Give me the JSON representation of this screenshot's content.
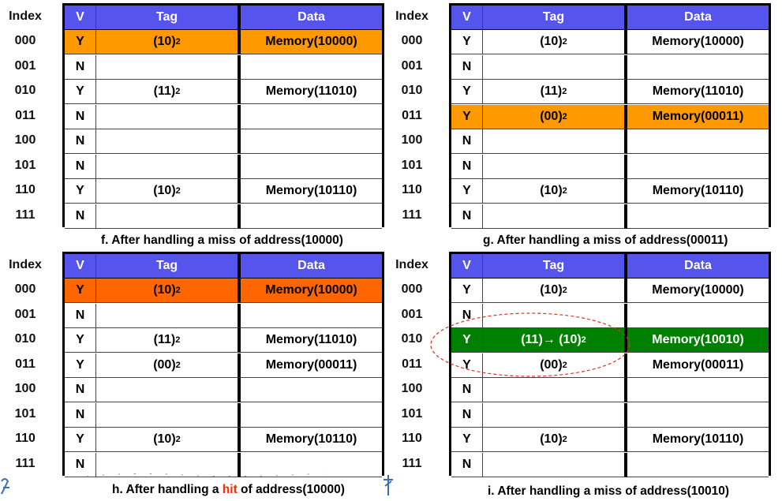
{
  "headers": {
    "index": "Index",
    "v": "V",
    "tag": "Tag",
    "data": "Data"
  },
  "indices": [
    "000",
    "001",
    "010",
    "011",
    "100",
    "101",
    "110",
    "111"
  ],
  "highlight_colors": {
    "orange": "#ff9900",
    "red_orange": "#ff6600",
    "green": "#008000",
    "header_blue": "#5555ee",
    "hit_text": "#ff2a00"
  },
  "panels": [
    {
      "id": "f",
      "caption": "f. After handling a miss of address(10000)",
      "rows": [
        {
          "v": "Y",
          "tag": "(10)",
          "tag_sub": "2",
          "data": "Memory(10000)",
          "highlight": "orange"
        },
        {
          "v": "N",
          "tag": "",
          "tag_sub": "",
          "data": "",
          "highlight": ""
        },
        {
          "v": "Y",
          "tag": "(11)",
          "tag_sub": "2",
          "data": "Memory(11010)",
          "highlight": ""
        },
        {
          "v": "N",
          "tag": "",
          "tag_sub": "",
          "data": "",
          "highlight": ""
        },
        {
          "v": "N",
          "tag": "",
          "tag_sub": "",
          "data": "",
          "highlight": ""
        },
        {
          "v": "N",
          "tag": "",
          "tag_sub": "",
          "data": "",
          "highlight": ""
        },
        {
          "v": "Y",
          "tag": "(10)",
          "tag_sub": "2",
          "data": "Memory(10110)",
          "highlight": ""
        },
        {
          "v": "N",
          "tag": "",
          "tag_sub": "",
          "data": "",
          "highlight": ""
        }
      ]
    },
    {
      "id": "g",
      "caption": "g. After handling a miss of address(00011)",
      "rows": [
        {
          "v": "Y",
          "tag": "(10)",
          "tag_sub": "2",
          "data": "Memory(10000)",
          "highlight": ""
        },
        {
          "v": "N",
          "tag": "",
          "tag_sub": "",
          "data": "",
          "highlight": ""
        },
        {
          "v": "Y",
          "tag": "(11)",
          "tag_sub": "2",
          "data": "Memory(11010)",
          "highlight": ""
        },
        {
          "v": "Y",
          "tag": "(00)",
          "tag_sub": "2",
          "data": "Memory(00011)",
          "highlight": "orange"
        },
        {
          "v": "N",
          "tag": "",
          "tag_sub": "",
          "data": "",
          "highlight": ""
        },
        {
          "v": "N",
          "tag": "",
          "tag_sub": "",
          "data": "",
          "highlight": ""
        },
        {
          "v": "Y",
          "tag": "(10)",
          "tag_sub": "2",
          "data": "Memory(10110)",
          "highlight": ""
        },
        {
          "v": "N",
          "tag": "",
          "tag_sub": "",
          "data": "",
          "highlight": ""
        }
      ]
    },
    {
      "id": "h",
      "caption_pre": "h. After handling a ",
      "caption_hit": "hit",
      "caption_post": " of address(10000)",
      "rows": [
        {
          "v": "Y",
          "tag": "(10)",
          "tag_sub": "2",
          "data": "Memory(10000)",
          "highlight": "red_orange"
        },
        {
          "v": "N",
          "tag": "",
          "tag_sub": "",
          "data": "",
          "highlight": ""
        },
        {
          "v": "Y",
          "tag": "(11)",
          "tag_sub": "2",
          "data": "Memory(11010)",
          "highlight": ""
        },
        {
          "v": "Y",
          "tag": "(00)",
          "tag_sub": "2",
          "data": "Memory(00011)",
          "highlight": ""
        },
        {
          "v": "N",
          "tag": "",
          "tag_sub": "",
          "data": "",
          "highlight": ""
        },
        {
          "v": "N",
          "tag": "",
          "tag_sub": "",
          "data": "",
          "highlight": ""
        },
        {
          "v": "Y",
          "tag": "(10)",
          "tag_sub": "2",
          "data": "Memory(10110)",
          "highlight": ""
        },
        {
          "v": "N",
          "tag": "",
          "tag_sub": "",
          "data": "",
          "highlight": ""
        }
      ]
    },
    {
      "id": "i",
      "caption": "i. After handling a miss of address(10010)",
      "rows": [
        {
          "v": "Y",
          "tag": "(10)",
          "tag_sub": "2",
          "data": "Memory(10000)",
          "highlight": ""
        },
        {
          "v": "N",
          "tag": "",
          "tag_sub": "",
          "data": "",
          "highlight": ""
        },
        {
          "v": "Y",
          "tag": "(11)→ (10)",
          "tag_sub": "2",
          "data": "Memory(10010)",
          "highlight": "green"
        },
        {
          "v": "Y",
          "tag": "(00)",
          "tag_sub": "2",
          "data": "Memory(00011)",
          "highlight": ""
        },
        {
          "v": "N",
          "tag": "",
          "tag_sub": "",
          "data": "",
          "highlight": ""
        },
        {
          "v": "N",
          "tag": "",
          "tag_sub": "",
          "data": "",
          "highlight": ""
        },
        {
          "v": "Y",
          "tag": "(10)",
          "tag_sub": "2",
          "data": "Memory(10110)",
          "highlight": ""
        },
        {
          "v": "N",
          "tag": "",
          "tag_sub": "",
          "data": "",
          "highlight": ""
        }
      ]
    }
  ]
}
